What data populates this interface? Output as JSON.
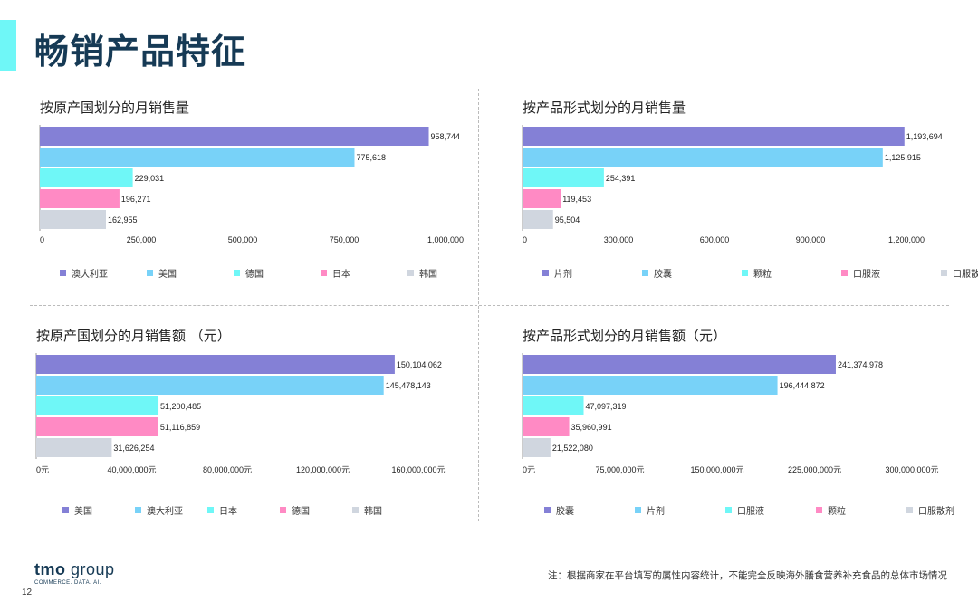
{
  "page": {
    "title": "畅销产品特征",
    "page_number": "12",
    "footnote": "注：根据商家在平台填写的属性内容统计，不能完全反映海外膳食营养补充食品的总体市场情况",
    "logo": {
      "brand": "tmo",
      "suffix": "group",
      "tagline": "COMMERCE. DATA. AI."
    }
  },
  "colors": {
    "accent": "#6ff7f7",
    "title": "#163a55",
    "series": [
      "#8480d6",
      "#78d2f8",
      "#6ff7f7",
      "#ff8ac4",
      "#d0d6df"
    ]
  },
  "chart_data": [
    {
      "type": "bar",
      "orientation": "horizontal",
      "title": "按原产国划分的月销售量",
      "categories": [
        "澳大利亚",
        "美国",
        "德国",
        "日本",
        "韩国"
      ],
      "values": [
        958744,
        775618,
        229031,
        196271,
        162955
      ],
      "value_labels": [
        "958,744",
        "775,618",
        "229,031",
        "196,271",
        "162,955"
      ],
      "xlim": [
        0,
        1000000
      ],
      "ticks": [
        0,
        250000,
        500000,
        750000,
        1000000
      ],
      "tick_labels": [
        "0",
        "250,000",
        "500,000",
        "750,000",
        "1,000,000"
      ],
      "grid": false,
      "legend": "bottom"
    },
    {
      "type": "bar",
      "orientation": "horizontal",
      "title": "按产品形式划分的月销售量",
      "categories": [
        "片剂",
        "胶囊",
        "颗粒",
        "口服液",
        "口服散剂"
      ],
      "values": [
        1193694,
        1125915,
        254391,
        119453,
        95504
      ],
      "value_labels": [
        "1,193,694",
        "1,125,915",
        "254,391",
        "119,453",
        "95,504"
      ],
      "xlim": [
        0,
        1200000
      ],
      "ticks": [
        0,
        300000,
        600000,
        900000,
        1200000
      ],
      "tick_labels": [
        "0",
        "300,000",
        "600,000",
        "900,000",
        "1,200,000"
      ],
      "grid": false,
      "legend": "bottom"
    },
    {
      "type": "bar",
      "orientation": "horizontal",
      "title": "按原产国划分的月销售额 （元）",
      "categories": [
        "美国",
        "澳大利亚",
        "日本",
        "德国",
        "韩国"
      ],
      "values": [
        150104062,
        145478143,
        51200485,
        51116859,
        31626254
      ],
      "value_labels": [
        "150,104,062",
        "145,478,143",
        "51,200,485",
        "51,116,859",
        "31,626,254"
      ],
      "xlim": [
        0,
        160000000
      ],
      "ticks": [
        0,
        40000000,
        80000000,
        120000000,
        160000000
      ],
      "tick_labels": [
        "0元",
        "40,000,000元",
        "80,000,000元",
        "120,000,000元",
        "160,000,000元"
      ],
      "grid": false,
      "legend": "bottom"
    },
    {
      "type": "bar",
      "orientation": "horizontal",
      "title": "按产品形式划分的月销售额（元）",
      "categories": [
        "胶囊",
        "片剂",
        "口服液",
        "颗粒",
        "口服散剂"
      ],
      "values": [
        241374978,
        196444872,
        47097319,
        35960991,
        21522080
      ],
      "value_labels": [
        "241,374,978",
        "196,444,872",
        "47,097,319",
        "35,960,991",
        "21,522,080"
      ],
      "xlim": [
        0,
        300000000
      ],
      "ticks": [
        0,
        75000000,
        150000000,
        225000000,
        300000000
      ],
      "tick_labels": [
        "0元",
        "75,000,000元",
        "150,000,000元",
        "225,000,000元",
        "300,000,000元"
      ],
      "grid": false,
      "legend": "bottom"
    }
  ]
}
